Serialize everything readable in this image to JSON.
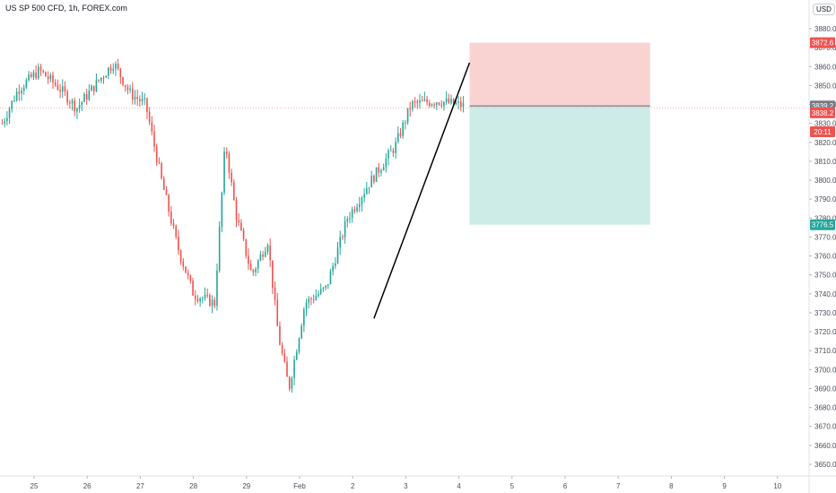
{
  "header": {
    "symbol_title": "US SP 500 CFD, 1h, FOREX.com",
    "currency": "USD"
  },
  "colors": {
    "up": "#26a69a",
    "down": "#ef5350",
    "stop_zone": "#f9d3d2",
    "target_zone": "#cdebe7",
    "trend_line": "#000000",
    "current_price_line": "#f6b0b0"
  },
  "chart_data": {
    "type": "candlestick",
    "title": "US SP 500 CFD, 1h, FOREX.com",
    "xlabel": "",
    "ylabel": "",
    "x_ticks": [
      "25",
      "26",
      "27",
      "28",
      "29",
      "Feb",
      "2",
      "3",
      "4",
      "5",
      "6",
      "7",
      "8",
      "9",
      "10"
    ],
    "y_ticks": [
      3880,
      3870,
      3860,
      3850,
      3840,
      3830,
      3820,
      3810,
      3800,
      3790,
      3780,
      3770,
      3760,
      3750,
      3740,
      3730,
      3720,
      3710,
      3700,
      3690,
      3680,
      3670,
      3660,
      3650
    ],
    "y_tick_labels": [
      "3880.0",
      "3870.0",
      "3860.0",
      "3850.0",
      "3840.0",
      "3830.0",
      "3820.0",
      "3810.0",
      "3800.0",
      "3790.0",
      "3780.0",
      "3770.0",
      "3760.0",
      "3750.0",
      "3740.0",
      "3730.0",
      "3720.0",
      "3710.0",
      "3700.0",
      "3690.0",
      "3680.0",
      "3670.0",
      "3660.0",
      "3650.0"
    ],
    "ylim": [
      3645,
      3887
    ],
    "x_range_days": [
      24.4,
      10.5
    ],
    "grid": false,
    "price_path_key_points": [
      {
        "t": 24.4,
        "price": 3830
      },
      {
        "t": 24.7,
        "price": 3848
      },
      {
        "t": 25.1,
        "price": 3858
      },
      {
        "t": 25.5,
        "price": 3848
      },
      {
        "t": 25.8,
        "price": 3838
      },
      {
        "t": 26.2,
        "price": 3852
      },
      {
        "t": 26.5,
        "price": 3862
      },
      {
        "t": 26.8,
        "price": 3846
      },
      {
        "t": 27.1,
        "price": 3840
      },
      {
        "t": 27.4,
        "price": 3800
      },
      {
        "t": 27.7,
        "price": 3765
      },
      {
        "t": 28.0,
        "price": 3740
      },
      {
        "t": 28.4,
        "price": 3735
      },
      {
        "t": 28.6,
        "price": 3820
      },
      {
        "t": 28.8,
        "price": 3782
      },
      {
        "t": 29.1,
        "price": 3750
      },
      {
        "t": 29.4,
        "price": 3768
      },
      {
        "t": 29.6,
        "price": 3718
      },
      {
        "t": 29.8,
        "price": 3690
      },
      {
        "t": 30.1,
        "price": 3735
      },
      {
        "t": 30.5,
        "price": 3743
      },
      {
        "t": 30.9,
        "price": 3780
      },
      {
        "t": 31.3,
        "price": 3798
      },
      {
        "t": 31.8,
        "price": 3818
      },
      {
        "t": 32.1,
        "price": 3840
      },
      {
        "t": 32.6,
        "price": 3842
      },
      {
        "t": 33.1,
        "price": 3839.2
      }
    ],
    "trend_line": {
      "start": {
        "t": 31.4,
        "price": 3727
      },
      "end": {
        "t": 33.2,
        "price": 3862
      }
    },
    "position": {
      "start_t": 33.2,
      "end_t": 36.6,
      "stop_price": 3872.6,
      "entry_price": 3839.2,
      "target_price": 3776.5
    },
    "price_tags": [
      {
        "label": "3872.6",
        "price": 3872.6,
        "color": "#ef5350"
      },
      {
        "label": "3839.2",
        "price": 3839.2,
        "color": "#787b86"
      },
      {
        "label": "3838.2",
        "price": 3835.6,
        "color": "#ef5350"
      },
      {
        "label": "20:11",
        "price": 3825.6,
        "color": "#ef5350"
      },
      {
        "label": "3776.5",
        "price": 3776.5,
        "color": "#26a69a"
      }
    ],
    "current_price": 3838.2
  }
}
